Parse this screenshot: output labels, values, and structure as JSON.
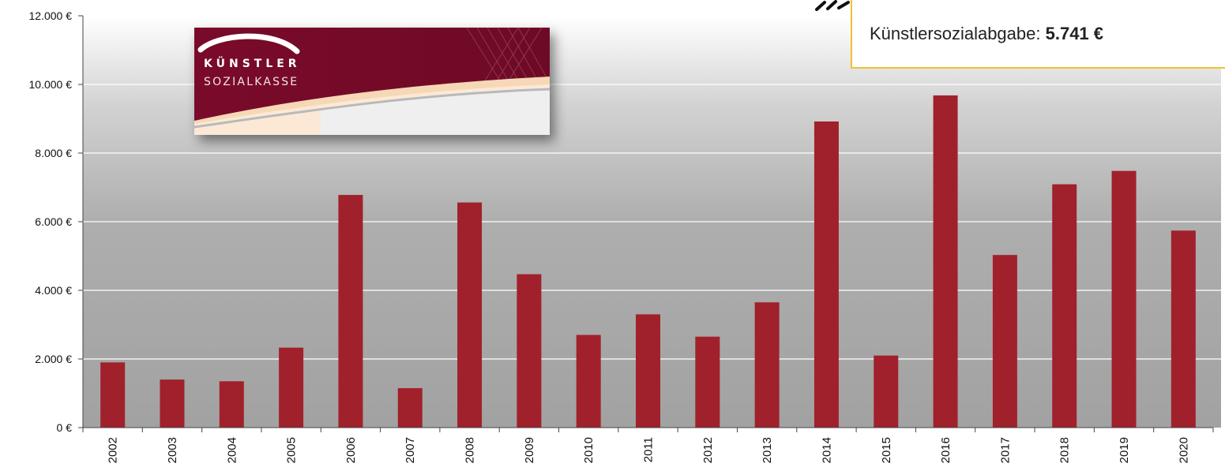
{
  "callout": {
    "label": "Künstlersozialabgabe:",
    "value": "5.741 €"
  },
  "logo": {
    "line1": "KÜNSTLER",
    "line2": "SOZIALKASSE"
  },
  "colors": {
    "bar": "#a0212b",
    "accent": "#f2c12e",
    "logo_bg": "#7a0a2a"
  },
  "chart_data": {
    "type": "bar",
    "categories": [
      "2002",
      "2003",
      "2004",
      "2005",
      "2006",
      "2007",
      "2008",
      "2009",
      "2010",
      "2011",
      "2012",
      "2013",
      "2014",
      "2015",
      "2016",
      "2017",
      "2018",
      "2019",
      "2020"
    ],
    "values": [
      1900,
      1400,
      1350,
      2330,
      6780,
      1150,
      6560,
      4470,
      2700,
      3300,
      2650,
      3650,
      8920,
      2100,
      9680,
      5030,
      7090,
      7480,
      5741
    ],
    "ylim": [
      0,
      12000
    ],
    "yticks": [
      0,
      2000,
      4000,
      6000,
      8000,
      10000,
      12000
    ],
    "ytick_labels": [
      "0 €",
      "2.000 €",
      "4.000 €",
      "6.000 €",
      "8.000 €",
      "10.000 €",
      "12.000 €"
    ],
    "grid": true,
    "legend": "none"
  }
}
